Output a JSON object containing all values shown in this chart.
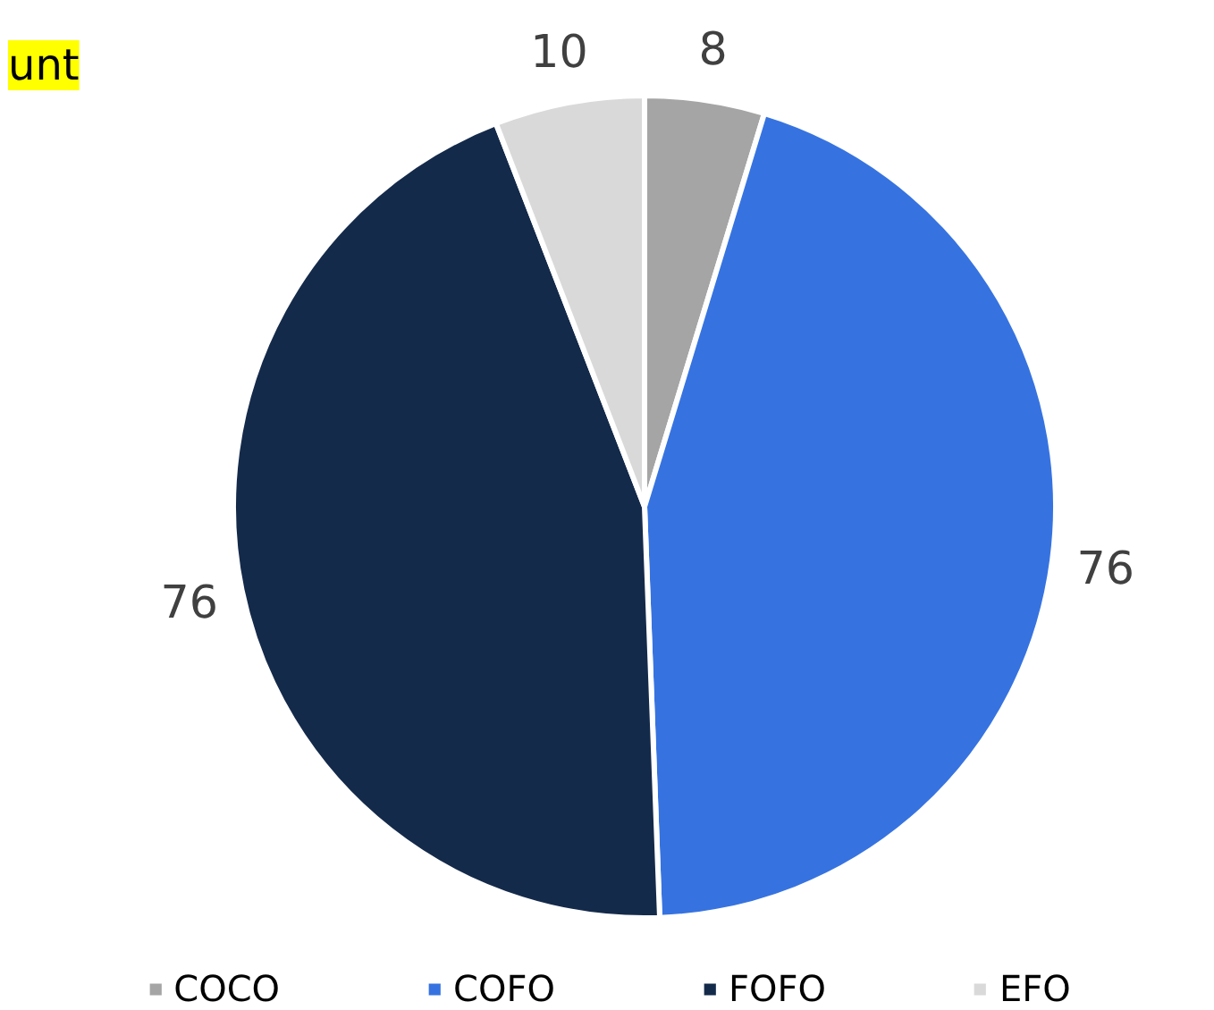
{
  "chart_data": {
    "type": "pie",
    "title": "unt",
    "categories": [
      "COCO",
      "COFO",
      "FOFO",
      "EFO"
    ],
    "values": [
      8,
      76,
      76,
      10
    ],
    "colors": [
      "#a5a5a5",
      "#3673e0",
      "#142a4a",
      "#d9d9d9"
    ],
    "data_labels": true,
    "legend": "bottom"
  }
}
